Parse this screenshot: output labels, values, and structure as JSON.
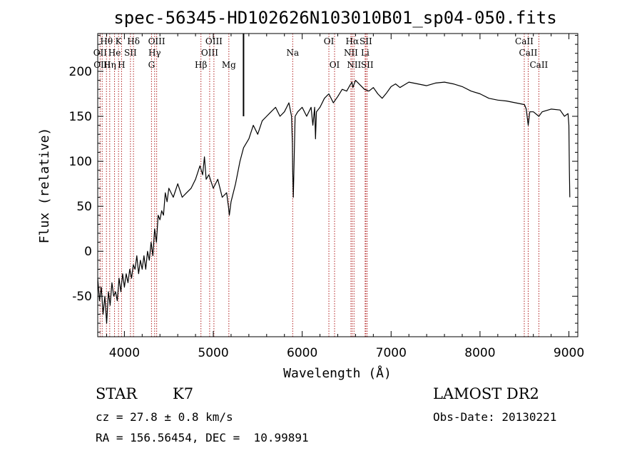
{
  "chart_data": {
    "type": "line",
    "title": "spec-56345-HD102626N103010B01_sp04-050.fits",
    "xlabel": "Wavelength (Å)",
    "ylabel": "Flux (relative)",
    "xlim": [
      3700,
      9100
    ],
    "ylim": [
      -95,
      242
    ],
    "xticks": [
      4000,
      5000,
      6000,
      7000,
      8000,
      9000
    ],
    "yticks": [
      -50,
      0,
      50,
      100,
      150,
      200
    ],
    "grid": false,
    "series": [
      {
        "x": [
          3700,
          3720,
          3740,
          3760,
          3780,
          3800,
          3820,
          3840,
          3860,
          3880,
          3900,
          3920,
          3940,
          3960,
          3980,
          4000,
          4020,
          4040,
          4060,
          4080,
          4100,
          4120,
          4140,
          4160,
          4180,
          4200,
          4220,
          4240,
          4260,
          4280,
          4300,
          4320,
          4340,
          4360,
          4380,
          4400,
          4420,
          4440,
          4460,
          4480,
          4500,
          4550,
          4600,
          4650,
          4700,
          4750,
          4800,
          4850,
          4880,
          4900,
          4920,
          4950,
          5000,
          5050,
          5100,
          5150,
          5170,
          5180,
          5200,
          5250,
          5300,
          5340,
          5400,
          5450,
          5500,
          5550,
          5600,
          5650,
          5700,
          5750,
          5800,
          5850,
          5880,
          5890,
          5893,
          5900,
          5920,
          5950,
          6000,
          6050,
          6100,
          6120,
          6140,
          6150,
          6160,
          6200,
          6250,
          6300,
          6350,
          6400,
          6450,
          6500,
          6540,
          6560,
          6570,
          6600,
          6650,
          6700,
          6750,
          6800,
          6850,
          6880,
          6900,
          6950,
          7000,
          7050,
          7100,
          7150,
          7200,
          7300,
          7400,
          7500,
          7600,
          7700,
          7800,
          7900,
          8000,
          8100,
          8200,
          8300,
          8400,
          8500,
          8520,
          8542,
          8560,
          8600,
          8662,
          8700,
          8800,
          8900,
          8950,
          8990,
          9000,
          9005,
          9010
        ],
        "y": [
          -30,
          -55,
          -40,
          -70,
          -50,
          -80,
          -45,
          -60,
          -35,
          -50,
          -45,
          -55,
          -30,
          -45,
          -25,
          -40,
          -25,
          -35,
          -20,
          -30,
          -15,
          -20,
          -5,
          -25,
          -10,
          -20,
          -5,
          -20,
          0,
          -10,
          10,
          -5,
          25,
          10,
          40,
          35,
          45,
          40,
          65,
          55,
          70,
          60,
          75,
          60,
          65,
          70,
          80,
          95,
          85,
          105,
          80,
          85,
          70,
          80,
          60,
          65,
          50,
          40,
          55,
          75,
          100,
          115,
          125,
          140,
          130,
          145,
          150,
          155,
          160,
          150,
          155,
          165,
          150,
          120,
          90,
          60,
          150,
          155,
          160,
          150,
          160,
          140,
          160,
          125,
          155,
          160,
          170,
          175,
          165,
          172,
          180,
          178,
          185,
          188,
          182,
          190,
          185,
          180,
          178,
          182,
          175,
          172,
          170,
          176,
          183,
          186,
          182,
          185,
          188,
          186,
          184,
          187,
          188,
          186,
          183,
          178,
          175,
          170,
          168,
          167,
          165,
          163,
          158,
          140,
          155,
          155,
          150,
          155,
          158,
          157,
          150,
          153,
          140,
          90,
          60
        ]
      }
    ],
    "lines": [
      {
        "label": "Hθ",
        "x": 3798,
        "row": 1
      },
      {
        "label": "K",
        "x": 3934,
        "row": 1
      },
      {
        "label": "Hδ",
        "x": 4102,
        "row": 1
      },
      {
        "label": "OIII",
        "x": 4363,
        "row": 1
      },
      {
        "label": "OIII",
        "x": 5007,
        "row": 1
      },
      {
        "label": "OI",
        "x": 6300,
        "row": 1
      },
      {
        "label": "Hα",
        "x": 6563,
        "row": 1
      },
      {
        "label": "SII",
        "x": 6716,
        "row": 1
      },
      {
        "label": "CaII",
        "x": 8498,
        "row": 1
      },
      {
        "label": "OII",
        "x": 3727,
        "row": 2
      },
      {
        "label": "He",
        "x": 3889,
        "row": 2
      },
      {
        "label": "SII",
        "x": 4068,
        "row": 2
      },
      {
        "label": "Hγ",
        "x": 4340,
        "row": 2
      },
      {
        "label": "OIII",
        "x": 4959,
        "row": 2
      },
      {
        "label": "Na",
        "x": 5893,
        "row": 2
      },
      {
        "label": "NII",
        "x": 6548,
        "row": 2
      },
      {
        "label": "Li",
        "x": 6708,
        "row": 2
      },
      {
        "label": "CaII",
        "x": 8542,
        "row": 2
      },
      {
        "label": "OIII",
        "x": 3750,
        "row": 3
      },
      {
        "label": "Hη",
        "x": 3835,
        "row": 3
      },
      {
        "label": "H",
        "x": 3968,
        "row": 3
      },
      {
        "label": "G",
        "x": 4305,
        "row": 3
      },
      {
        "label": "Hβ",
        "x": 4861,
        "row": 3
      },
      {
        "label": "Mg",
        "x": 5175,
        "row": 3
      },
      {
        "label": "OI",
        "x": 6364,
        "row": 3
      },
      {
        "label": "NII",
        "x": 6583,
        "row": 3
      },
      {
        "label": "SII",
        "x": 6731,
        "row": 3
      },
      {
        "label": "CaII",
        "x": 8662,
        "row": 3
      }
    ],
    "marker_line_x": 5340
  },
  "info": {
    "class": "STAR",
    "subclass": "K7",
    "survey": "LAMOST DR2",
    "cz": "cz = 27.8 ± 0.8 km/s",
    "obs_date": "Obs-Date: 20130221",
    "radec": "RA = 156.56454, DEC =  10.99891"
  },
  "colors": {
    "axis": "#000000",
    "spectrum": "#000000",
    "line_markers": "#b22222"
  }
}
